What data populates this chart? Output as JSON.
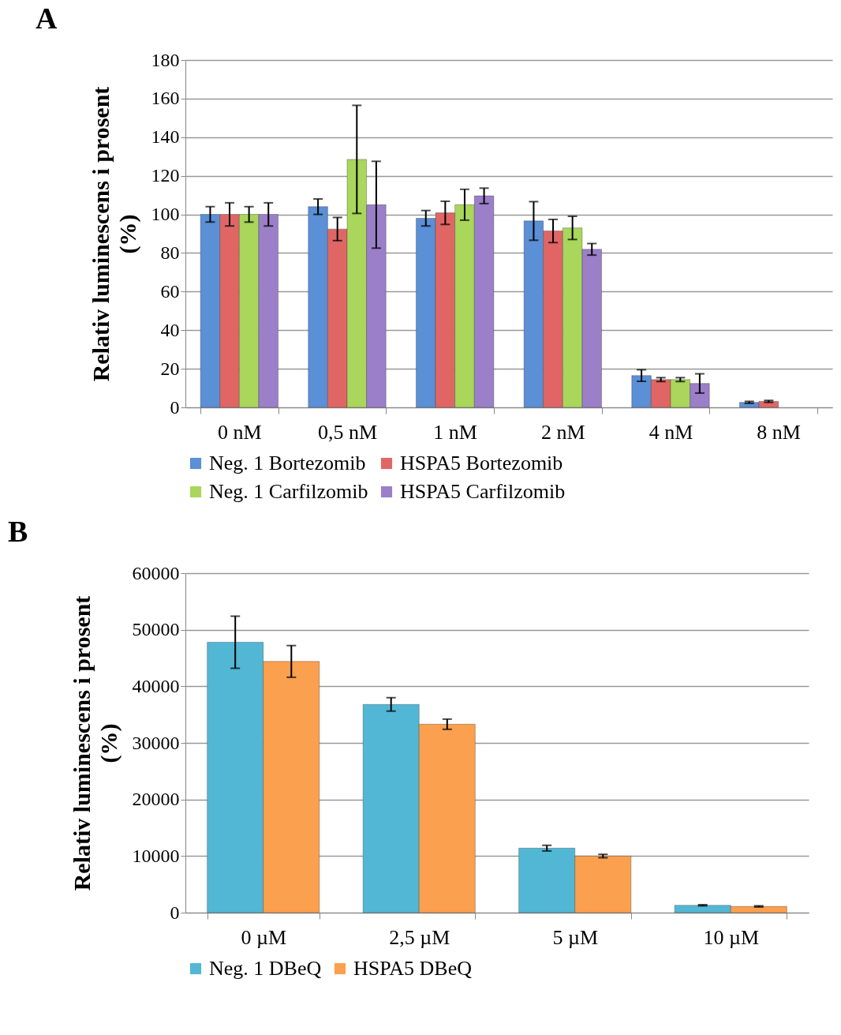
{
  "chart_data": [
    {
      "type": "bar",
      "title": "A",
      "ylabel": "Relativ luminescens i prosent (%)",
      "categories": [
        "0 nM",
        "0,5 nM",
        "1 nM",
        "2 nM",
        "4 nM",
        "8 nM"
      ],
      "ylim": [
        0,
        180
      ],
      "yticks": [
        0,
        20,
        40,
        60,
        80,
        100,
        120,
        140,
        160,
        180
      ],
      "grid": "y",
      "legend": "bottom",
      "series": [
        {
          "name": "Neg. 1 Bortezomib",
          "color": "#5b8fd6",
          "values": [
            100,
            104,
            98,
            96.6,
            16.5,
            2.6
          ],
          "errors": [
            4,
            4,
            4,
            10,
            3,
            0.5
          ]
        },
        {
          "name": "HSPA5 Bortezomib",
          "color": "#e06666",
          "values": [
            100,
            92.4,
            100.8,
            91.4,
            14.4,
            3.1
          ],
          "errors": [
            6,
            6,
            6,
            6,
            1,
            0.5
          ]
        },
        {
          "name": "Neg. 1 Carfilzomib",
          "color": "#a9d65b",
          "values": [
            100,
            128.5,
            105,
            93,
            14.4,
            null
          ],
          "errors": [
            4,
            28,
            8,
            6,
            1,
            null
          ]
        },
        {
          "name": "HSPA5 Carfilzomib",
          "color": "#9b7fc9",
          "values": [
            100,
            105,
            109.6,
            81.9,
            12.4,
            null
          ],
          "errors": [
            6,
            22.5,
            4,
            3,
            5,
            null
          ]
        }
      ]
    },
    {
      "type": "bar",
      "title": "B",
      "ylabel": "Relativ luminescens i prosent (%)",
      "categories": [
        "0 µM",
        "2,5 µM",
        "5 µM",
        "10 µM"
      ],
      "ylim": [
        0,
        60000
      ],
      "yticks": [
        0,
        10000,
        20000,
        30000,
        40000,
        50000,
        60000
      ],
      "grid": "y",
      "legend": "bottom",
      "series": [
        {
          "name": "Neg. 1 DBeQ",
          "color": "#52b7d4",
          "values": [
            47800,
            36800,
            11400,
            1300
          ],
          "errors": [
            4600,
            1200,
            500,
            100
          ]
        },
        {
          "name": "HSPA5 DBeQ",
          "color": "#fba04f",
          "values": [
            44400,
            33300,
            10000,
            1100
          ],
          "errors": [
            2800,
            900,
            300,
            100
          ]
        }
      ]
    }
  ]
}
